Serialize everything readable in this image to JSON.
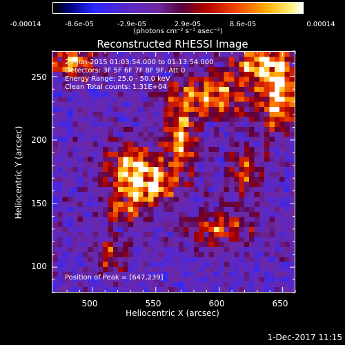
{
  "chart_data": {
    "type": "heatmap",
    "title": "Reconstructed RHESSI Image",
    "xlabel": "Heliocentric X (arcsec)",
    "ylabel": "Heliocentric Y (arcsec)",
    "xlim": [
      468,
      660
    ],
    "ylim": [
      80,
      270
    ],
    "x_ticks": [
      "500",
      "550",
      "600",
      "650"
    ],
    "y_ticks": [
      "100",
      "150",
      "200",
      "250"
    ],
    "colorbar": {
      "ticks": [
        "-0.00014",
        "-8.6e-05",
        "-2.9e-05",
        "2.9e-05",
        "8.6e-05",
        "0.00014"
      ],
      "units": "(photons cm⁻² s⁻¹ asec⁻²)",
      "range": [
        -0.00014,
        0.00014
      ]
    },
    "info_lines": [
      "25-Jun-2015 01:03:54.000 to 01:13:54.000",
      "Detectors: 3F 5F 6F 7F 8F 9F, Att 0",
      "Energy Range: 25.0 - 50.0 keV",
      "Clean    Total counts: 1.31E+04"
    ],
    "peak_label": "Position of Peak = [647,239]",
    "peak": [
      647,
      239
    ],
    "bright_regions": [
      {
        "x": 545,
        "y": 165,
        "sx": 12,
        "sy": 10,
        "amp": 1.0
      },
      {
        "x": 530,
        "y": 178,
        "sx": 14,
        "sy": 14,
        "amp": 0.8
      },
      {
        "x": 570,
        "y": 200,
        "sx": 8,
        "sy": 20,
        "amp": 0.8
      },
      {
        "x": 595,
        "y": 235,
        "sx": 22,
        "sy": 12,
        "amp": 0.75
      },
      {
        "x": 647,
        "y": 239,
        "sx": 10,
        "sy": 22,
        "amp": 1.0
      },
      {
        "x": 630,
        "y": 260,
        "sx": 14,
        "sy": 8,
        "amp": 0.8
      },
      {
        "x": 485,
        "y": 262,
        "sx": 12,
        "sy": 8,
        "amp": 0.8
      },
      {
        "x": 525,
        "y": 145,
        "sx": 10,
        "sy": 8,
        "amp": 0.6
      },
      {
        "x": 600,
        "y": 130,
        "sx": 18,
        "sy": 10,
        "amp": 0.55
      },
      {
        "x": 620,
        "y": 175,
        "sx": 10,
        "sy": 14,
        "amp": 0.5
      },
      {
        "x": 515,
        "y": 110,
        "sx": 10,
        "sy": 10,
        "amp": 0.45
      }
    ]
  },
  "timestamp": "1-Dec-2017 11:15"
}
